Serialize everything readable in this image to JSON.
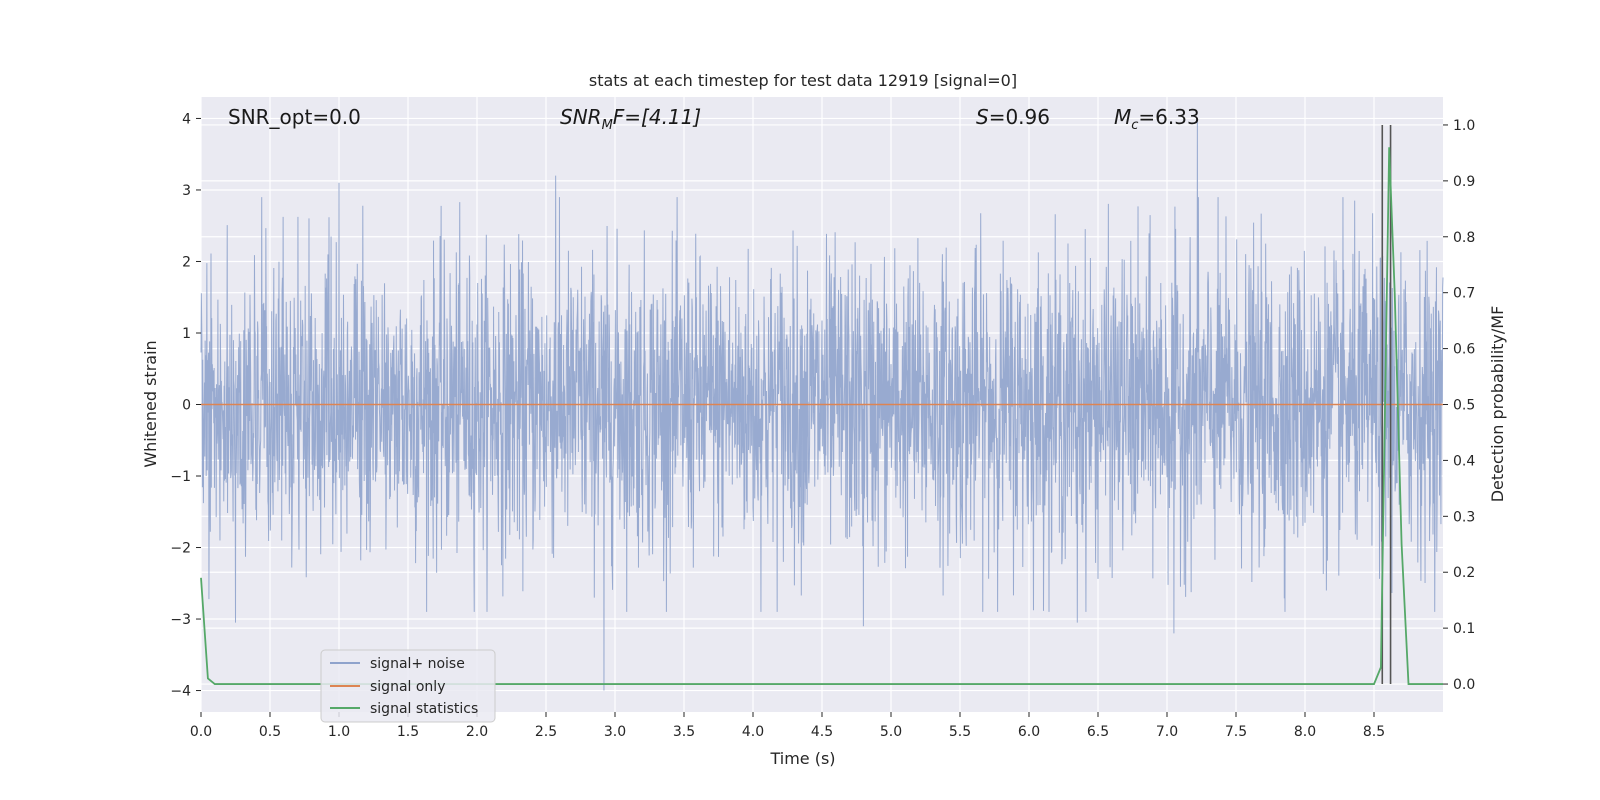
{
  "chart_data": {
    "type": "line",
    "title": "stats at each timestep for test data 12919 [signal=0]",
    "xlabel": "Time (s)",
    "ylabel_left": "Whitened strain",
    "ylabel_right": "Detection probability/MF",
    "xlim": [
      0,
      9
    ],
    "ylim_left": [
      -4.3,
      4.3
    ],
    "ylim_right": [
      -0.05,
      1.05
    ],
    "x_ticks": [
      "0.0",
      "0.5",
      "1.0",
      "1.5",
      "2.0",
      "2.5",
      "3.0",
      "3.5",
      "4.0",
      "4.5",
      "5.0",
      "5.5",
      "6.0",
      "6.5",
      "7.0",
      "7.5",
      "8.0",
      "8.5"
    ],
    "y_ticks_left": [
      "4",
      "3",
      "2",
      "1",
      "0",
      "−1",
      "−2",
      "−3",
      "−4"
    ],
    "y_ticks_right": [
      "1.0",
      "0.9",
      "0.8",
      "0.7",
      "0.6",
      "0.5",
      "0.4",
      "0.3",
      "0.2",
      "0.1",
      "0.0"
    ],
    "grid": true,
    "legend_position": "lower-left",
    "annotations": {
      "snr_opt": "SNR_opt=0.0",
      "snr_mf_base": "SNR",
      "snr_mf_sub": "M",
      "snr_mf_rest": "F=[4.11]",
      "s_var": "S",
      "s_value": "=0.96",
      "mc_var": "M",
      "mc_sub": "c",
      "mc_value": "=6.33"
    },
    "series": [
      {
        "name": "signal+ noise",
        "color": "#8fa3cc",
        "axis": "left",
        "description_values": "noise, approx ±1.6 typical, peaks to about ±3",
        "notable_points": [
          [
            0.25,
            -3.05
          ],
          [
            1.0,
            3.1
          ],
          [
            2.57,
            3.2
          ],
          [
            2.92,
            -4.0
          ],
          [
            4.8,
            -3.1
          ],
          [
            6.35,
            -3.05
          ],
          [
            7.05,
            -3.2
          ],
          [
            7.22,
            3.95
          ]
        ]
      },
      {
        "name": "signal only",
        "color": "#dd8452",
        "axis": "left",
        "x": [
          0,
          9
        ],
        "y": [
          0,
          0
        ]
      },
      {
        "name": "signal statistics",
        "color": "#55a868",
        "axis": "right",
        "x": [
          0.0,
          0.05,
          0.1,
          8.5,
          8.55,
          8.58,
          8.61,
          8.65,
          8.7,
          8.75,
          8.8,
          9.0
        ],
        "y": [
          0.19,
          0.01,
          0.0,
          0.0,
          0.03,
          0.5,
          0.96,
          0.7,
          0.25,
          0.0,
          0.0,
          0.0
        ]
      }
    ],
    "vertical_lines": {
      "color": "#555555",
      "x": [
        8.56,
        8.62
      ],
      "y_range_right": [
        0.0,
        1.0
      ]
    }
  }
}
